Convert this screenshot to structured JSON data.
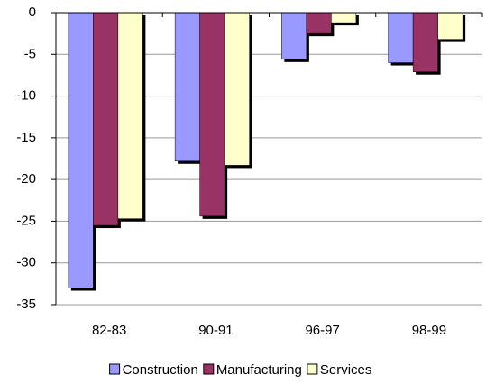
{
  "chart_data": {
    "type": "bar",
    "categories": [
      "82-83",
      "90-91",
      "96-97",
      "98-99"
    ],
    "series": [
      {
        "name": "Construction",
        "color": "#9999ff",
        "values": [
          -33,
          -17.8,
          -5.6,
          -6
        ]
      },
      {
        "name": "Manufacturing",
        "color": "#993366",
        "values": [
          -25.5,
          -24.4,
          -2.5,
          -7.1
        ]
      },
      {
        "name": "Services",
        "color": "#ffffcc",
        "values": [
          -24.7,
          -18.3,
          -1.2,
          -3.2
        ]
      }
    ],
    "ylim": [
      -35,
      0
    ],
    "yticks": [
      0,
      -5,
      -10,
      -15,
      -20,
      -25,
      -30,
      -35
    ],
    "grid": true,
    "legend": "bottom"
  }
}
